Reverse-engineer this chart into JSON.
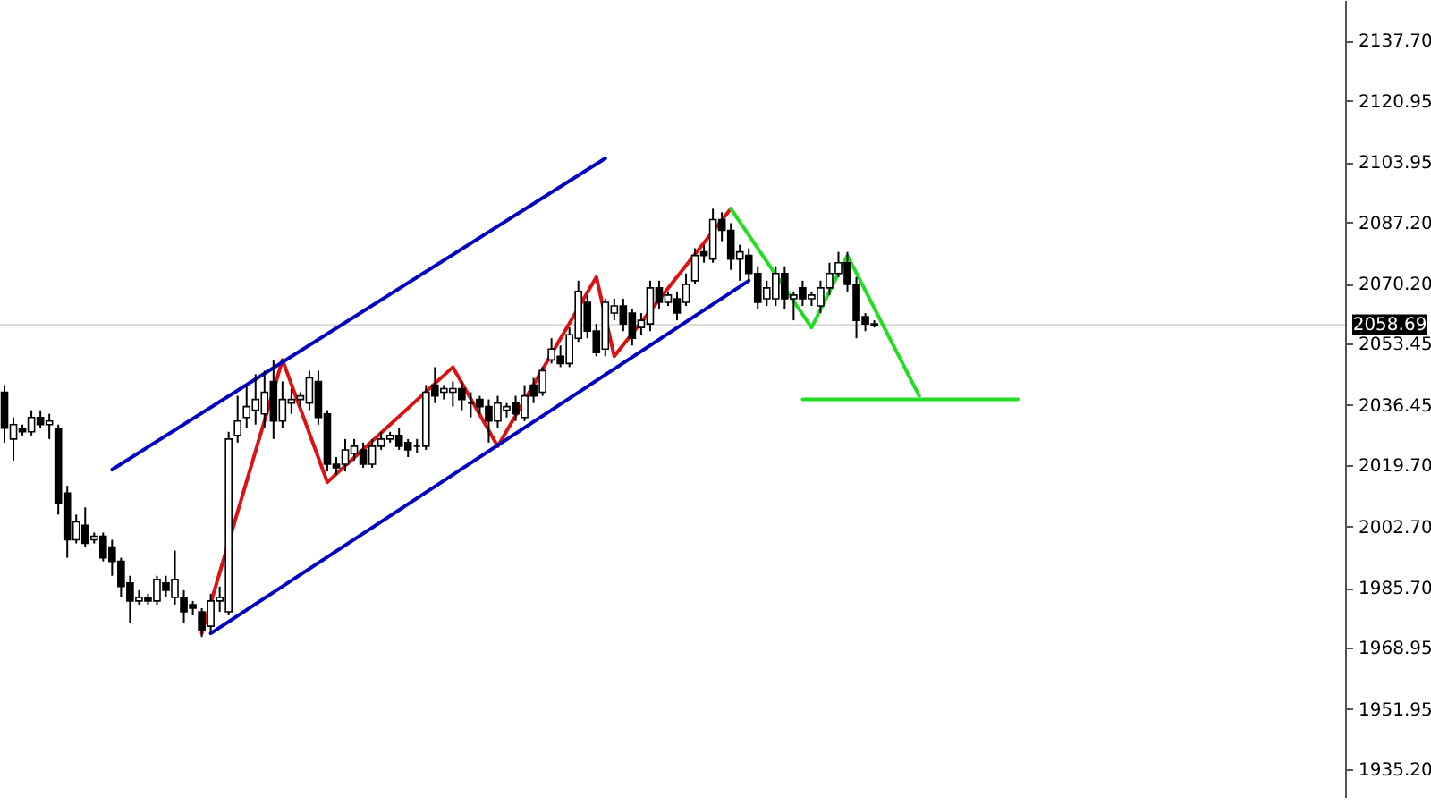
{
  "chart_data": {
    "type": "candlestick",
    "categories": [
      null,
      null,
      null,
      null,
      null,
      null,
      null,
      null,
      null,
      null,
      null,
      null,
      null,
      null,
      null,
      null,
      null,
      null,
      null,
      null,
      null,
      null,
      null,
      null,
      null,
      null,
      null,
      null,
      null,
      null,
      null,
      null,
      null,
      null,
      null,
      null,
      null,
      null,
      null,
      null,
      null,
      null,
      null,
      null,
      null,
      null,
      null,
      null,
      null,
      null,
      null,
      null,
      null,
      null,
      null,
      null,
      null,
      null,
      null,
      null,
      null,
      null,
      null,
      null,
      null,
      null,
      null,
      null,
      null,
      null,
      null,
      null,
      null,
      null,
      null,
      null,
      null,
      null,
      null,
      null,
      null,
      null,
      null,
      null,
      null,
      null,
      null,
      null,
      null,
      null,
      null,
      null,
      null,
      null,
      null,
      null,
      null,
      null,
      null,
      null,
      null,
      null,
      null,
      null,
      null,
      null,
      null,
      null,
      null,
      null,
      null,
      null,
      null,
      null,
      null,
      null,
      null,
      null,
      null,
      null,
      null,
      null,
      null,
      null,
      null,
      null,
      null,
      null,
      null,
      null,
      null,
      null,
      null,
      null,
      null,
      null,
      null,
      null,
      null,
      null,
      null,
      null,
      null,
      null,
      null,
      null,
      null,
      null,
      null,
      null
    ],
    "ohlc": [
      [
        2040,
        2042,
        2026,
        2030
      ],
      [
        2027,
        2033,
        2021,
        2031
      ],
      [
        2030,
        2031,
        2028,
        2029
      ],
      [
        2029,
        2035,
        2028,
        2033
      ],
      [
        2033,
        2035,
        2030,
        2031
      ],
      [
        2031,
        2034,
        2027,
        2032
      ],
      [
        2030,
        2031,
        2006,
        2009
      ],
      [
        2012,
        2014,
        1994,
        1999
      ],
      [
        1999,
        2006,
        1998,
        2004
      ],
      [
        2003,
        2008,
        1997,
        1998
      ],
      [
        1999,
        2001,
        1998,
        2000
      ],
      [
        2000,
        2001,
        1993,
        1994
      ],
      [
        1997,
        1999,
        1989,
        1993
      ],
      [
        1993,
        1994,
        1983,
        1986
      ],
      [
        1987,
        1989,
        1976,
        1982
      ],
      [
        1982,
        1985,
        1981,
        1983
      ],
      [
        1983,
        1984,
        1981,
        1982
      ],
      [
        1982,
        1989,
        1981,
        1988
      ],
      [
        1987,
        1989,
        1983,
        1985
      ],
      [
        1983,
        1996,
        1981,
        1988
      ],
      [
        1983,
        1985,
        1976,
        1979
      ],
      [
        1981,
        1982,
        1978,
        1980
      ],
      [
        1979,
        1980,
        1972,
        1974
      ],
      [
        1975,
        1984,
        1973,
        1982
      ],
      [
        1982,
        1986,
        1979,
        1983
      ],
      [
        1979,
        2029,
        1978,
        2027
      ],
      [
        2028,
        2039,
        2026,
        2032
      ],
      [
        2033,
        2042,
        2030,
        2036
      ],
      [
        2035,
        2045,
        2031,
        2038
      ],
      [
        2034,
        2046,
        2030,
        2040
      ],
      [
        2043,
        2049,
        2027,
        2032
      ],
      [
        2032,
        2043,
        2030,
        2038
      ],
      [
        2037,
        2041,
        2034,
        2038
      ],
      [
        2038,
        2040,
        2036,
        2039
      ],
      [
        2037,
        2046,
        2035,
        2044
      ],
      [
        2043,
        2046,
        2031,
        2033
      ],
      [
        2034,
        2035,
        2018,
        2020
      ],
      [
        2020,
        2022,
        2017,
        2019
      ],
      [
        2020,
        2027,
        2018,
        2024
      ],
      [
        2023,
        2027,
        2021,
        2025
      ],
      [
        2024,
        2026,
        2019,
        2020
      ],
      [
        2020,
        2027,
        2019,
        2025
      ],
      [
        2025,
        2029,
        2024,
        2027
      ],
      [
        2027,
        2029,
        2026,
        2028
      ],
      [
        2028,
        2030,
        2024,
        2025
      ],
      [
        2026,
        2027,
        2022,
        2024
      ],
      [
        2025,
        2027,
        2023,
        2025
      ],
      [
        2025,
        2042,
        2024,
        2040
      ],
      [
        2042,
        2047,
        2037,
        2039
      ],
      [
        2040,
        2042,
        2038,
        2041
      ],
      [
        2040,
        2043,
        2036,
        2041
      ],
      [
        2041,
        2043,
        2035,
        2038
      ],
      [
        2037,
        2040,
        2033,
        2037
      ],
      [
        2038,
        2039,
        2034,
        2036
      ],
      [
        2036,
        2038,
        2026,
        2032
      ],
      [
        2032,
        2039,
        2030,
        2037
      ],
      [
        2035,
        2037,
        2033,
        2036
      ],
      [
        2037,
        2039,
        2032,
        2034
      ],
      [
        2033,
        2042,
        2032,
        2039
      ],
      [
        2042,
        2044,
        2037,
        2039
      ],
      [
        2040,
        2047,
        2039,
        2046
      ],
      [
        2049,
        2055,
        2048,
        2052
      ],
      [
        2050,
        2053,
        2047,
        2048
      ],
      [
        2048,
        2058,
        2047,
        2056
      ],
      [
        2055,
        2071,
        2054,
        2068
      ],
      [
        2065,
        2067,
        2055,
        2057
      ],
      [
        2057,
        2059,
        2050,
        2051
      ],
      [
        2052,
        2066,
        2050,
        2065
      ],
      [
        2062,
        2066,
        2060,
        2064
      ],
      [
        2064,
        2066,
        2057,
        2059
      ],
      [
        2062,
        2063,
        2053,
        2055
      ],
      [
        2058,
        2062,
        2056,
        2060
      ],
      [
        2059,
        2071,
        2057,
        2069
      ],
      [
        2069,
        2071,
        2063,
        2065
      ],
      [
        2065,
        2068,
        2064,
        2067
      ],
      [
        2066,
        2068,
        2060,
        2062
      ],
      [
        2065,
        2073,
        2064,
        2070
      ],
      [
        2071,
        2080,
        2070,
        2078
      ],
      [
        2079,
        2081,
        2076,
        2078
      ],
      [
        2077,
        2091,
        2076,
        2088
      ],
      [
        2088,
        2090,
        2082,
        2085
      ],
      [
        2085,
        2087,
        2074,
        2077
      ],
      [
        2077,
        2081,
        2071,
        2079
      ],
      [
        2078,
        2080,
        2071,
        2073
      ],
      [
        2073,
        2075,
        2063,
        2065
      ],
      [
        2066,
        2071,
        2064,
        2069
      ],
      [
        2066,
        2075,
        2064,
        2073
      ],
      [
        2073,
        2075,
        2063,
        2066
      ],
      [
        2066,
        2068,
        2060,
        2067
      ],
      [
        2069,
        2071,
        2064,
        2066
      ],
      [
        2066,
        2068,
        2064,
        2067
      ],
      [
        2064,
        2071,
        2062,
        2069
      ],
      [
        2069,
        2076,
        2067,
        2073
      ],
      [
        2073,
        2079,
        2072,
        2076
      ],
      [
        2076,
        2079,
        2068,
        2070
      ],
      [
        2070,
        2072,
        2055,
        2060
      ],
      [
        2061,
        2062,
        2057,
        2059
      ],
      [
        2059,
        2060,
        2058,
        2058.69
      ],
      null,
      null,
      null,
      null,
      null,
      null,
      null,
      null,
      null,
      null,
      null,
      null,
      null,
      null,
      null,
      null,
      null,
      null,
      null,
      null,
      null,
      null,
      null,
      null,
      null,
      null,
      null,
      null,
      null,
      null,
      null,
      null,
      null,
      null,
      null,
      null,
      null,
      null,
      null,
      null,
      null,
      null,
      null,
      null,
      null,
      null,
      null,
      null,
      null,
      null,
      null,
      null
    ],
    "series": [
      {
        "type": "line",
        "color": "#dd1111",
        "values": [
          null,
          null,
          null,
          null,
          null,
          null,
          null,
          null,
          null,
          null,
          null,
          null,
          null,
          null,
          null,
          null,
          null,
          null,
          null,
          null,
          null,
          null,
          1973,
          null,
          null,
          null,
          null,
          null,
          null,
          null,
          null,
          2049,
          null,
          null,
          null,
          null,
          2015,
          null,
          null,
          null,
          null,
          null,
          null,
          null,
          null,
          null,
          null,
          null,
          null,
          null,
          2047,
          null,
          null,
          null,
          null,
          2025,
          null,
          null,
          null,
          null,
          null,
          null,
          null,
          null,
          null,
          null,
          2072,
          null,
          2050,
          null,
          null,
          null,
          null,
          null,
          null,
          null,
          null,
          null,
          null,
          null,
          null,
          2091,
          null,
          null,
          null,
          null,
          null,
          null,
          null,
          null,
          null,
          null,
          null,
          null,
          null,
          null,
          null,
          null,
          null,
          null,
          null,
          null,
          null,
          null,
          null,
          null,
          null,
          null,
          null,
          null,
          null,
          null,
          null,
          null,
          null,
          null,
          null,
          null,
          null,
          null,
          null,
          null,
          null,
          null,
          null,
          null,
          null,
          null,
          null,
          null,
          null,
          null,
          null,
          null,
          null,
          null,
          null,
          null,
          null,
          null,
          null,
          null,
          null,
          null,
          null,
          null,
          null,
          null,
          null,
          null
        ]
      },
      {
        "type": "line",
        "color": "#22dd22",
        "values": [
          null,
          null,
          null,
          null,
          null,
          null,
          null,
          null,
          null,
          null,
          null,
          null,
          null,
          null,
          null,
          null,
          null,
          null,
          null,
          null,
          null,
          null,
          null,
          null,
          null,
          null,
          null,
          null,
          null,
          null,
          null,
          null,
          null,
          null,
          null,
          null,
          null,
          null,
          null,
          null,
          null,
          null,
          null,
          null,
          null,
          null,
          null,
          null,
          null,
          null,
          null,
          null,
          null,
          null,
          null,
          null,
          null,
          null,
          null,
          null,
          null,
          null,
          null,
          null,
          null,
          null,
          null,
          null,
          null,
          null,
          null,
          null,
          null,
          null,
          null,
          null,
          null,
          null,
          null,
          null,
          null,
          2091,
          null,
          null,
          null,
          null,
          null,
          null,
          null,
          null,
          2058,
          null,
          null,
          null,
          2078,
          null,
          null,
          null,
          null,
          null,
          null,
          null,
          2039,
          null,
          null,
          null,
          null,
          null,
          null,
          null,
          null,
          null,
          null,
          null,
          null,
          null,
          null,
          null,
          null,
          null,
          null,
          null,
          null,
          null,
          null,
          null,
          null,
          null,
          null,
          null,
          null,
          null,
          null,
          null,
          null,
          null,
          null,
          null,
          null,
          null,
          null,
          null,
          null,
          null,
          null,
          null,
          null,
          null,
          null,
          null
        ]
      },
      {
        "type": "line",
        "color": "#22dd22",
        "values": [
          null,
          null,
          null,
          null,
          null,
          null,
          null,
          null,
          null,
          null,
          null,
          null,
          null,
          null,
          null,
          null,
          null,
          null,
          null,
          null,
          null,
          null,
          null,
          null,
          null,
          null,
          null,
          null,
          null,
          null,
          null,
          null,
          null,
          null,
          null,
          null,
          null,
          null,
          null,
          null,
          null,
          null,
          null,
          null,
          null,
          null,
          null,
          null,
          null,
          null,
          null,
          null,
          null,
          null,
          null,
          null,
          null,
          null,
          null,
          null,
          null,
          null,
          null,
          null,
          null,
          null,
          null,
          null,
          null,
          null,
          null,
          null,
          null,
          null,
          null,
          null,
          null,
          null,
          null,
          null,
          null,
          null,
          null,
          null,
          null,
          null,
          null,
          null,
          null,
          2038,
          null,
          null,
          null,
          null,
          null,
          null,
          null,
          null,
          null,
          null,
          null,
          null,
          null,
          null,
          null,
          null,
          null,
          null,
          null,
          null,
          null,
          null,
          null,
          2038,
          null,
          null,
          null,
          null,
          null,
          null,
          null,
          null,
          null,
          null,
          null,
          null,
          null,
          null,
          null,
          null,
          null,
          null,
          null,
          null,
          null,
          null,
          null,
          null,
          null,
          null,
          null,
          null,
          null,
          null,
          null,
          null,
          null,
          null,
          null,
          null
        ]
      },
      {
        "type": "line",
        "color": "#0000c0",
        "values": [
          null,
          null,
          null,
          null,
          null,
          null,
          null,
          null,
          null,
          null,
          null,
          null,
          2018.5,
          null,
          null,
          null,
          null,
          null,
          null,
          null,
          null,
          null,
          null,
          null,
          null,
          null,
          null,
          null,
          null,
          null,
          null,
          null,
          null,
          null,
          null,
          null,
          null,
          null,
          null,
          null,
          null,
          null,
          null,
          null,
          null,
          null,
          null,
          null,
          null,
          null,
          null,
          null,
          null,
          null,
          null,
          null,
          null,
          null,
          null,
          null,
          null,
          null,
          null,
          null,
          null,
          null,
          null,
          2105,
          null,
          null,
          null,
          null,
          null,
          null,
          null,
          null,
          null,
          null,
          null,
          null,
          null,
          null,
          null,
          null,
          null,
          null,
          null,
          null,
          null,
          null,
          null,
          null,
          null,
          null,
          null,
          null,
          null,
          null,
          null,
          null,
          null,
          null,
          null,
          null,
          null,
          null,
          null,
          null,
          null,
          null,
          null,
          null,
          null,
          null,
          null,
          null,
          null,
          null,
          null,
          null,
          null,
          null,
          null,
          null,
          null,
          null,
          null,
          null,
          null,
          null,
          null,
          null,
          null,
          null,
          null,
          null,
          null,
          null,
          null,
          null,
          null,
          null,
          null,
          null,
          null,
          null,
          null,
          null,
          null,
          null
        ]
      },
      {
        "type": "line",
        "color": "#0000c0",
        "values": [
          null,
          null,
          null,
          null,
          null,
          null,
          null,
          null,
          null,
          null,
          null,
          null,
          null,
          null,
          null,
          null,
          null,
          null,
          null,
          null,
          null,
          null,
          null,
          1973,
          null,
          null,
          null,
          null,
          null,
          null,
          null,
          null,
          null,
          null,
          null,
          null,
          null,
          null,
          null,
          null,
          null,
          null,
          null,
          null,
          null,
          null,
          null,
          null,
          null,
          null,
          null,
          null,
          null,
          null,
          null,
          null,
          null,
          null,
          null,
          null,
          null,
          null,
          null,
          null,
          null,
          null,
          null,
          null,
          null,
          null,
          null,
          null,
          null,
          null,
          null,
          null,
          null,
          null,
          null,
          null,
          null,
          null,
          null,
          2071,
          null,
          null,
          null,
          null,
          null,
          null,
          null,
          null,
          null,
          null,
          null,
          null,
          null,
          null,
          null,
          null,
          null,
          null,
          null,
          null,
          null,
          null,
          null,
          null,
          null,
          null,
          null,
          null,
          null,
          null,
          null,
          null,
          null,
          null,
          null,
          null,
          null,
          null,
          null,
          null,
          null,
          null,
          null,
          null,
          null,
          null,
          null,
          null,
          null,
          null,
          null,
          null,
          null,
          null,
          null,
          null,
          null,
          null,
          null,
          null,
          null,
          null,
          null,
          null,
          null,
          null
        ]
      }
    ],
    "ylim": [
      1927.3,
      2149.0
    ],
    "yticks": [
      {
        "value": 1935.2,
        "label": "1935.20"
      },
      {
        "value": 1951.95,
        "label": "1951.95"
      },
      {
        "value": 1968.95,
        "label": "1968.95"
      },
      {
        "value": 1985.7,
        "label": "1985.70"
      },
      {
        "value": 2002.7,
        "label": "2002.70"
      },
      {
        "value": 2019.7,
        "label": "2019.70"
      },
      {
        "value": 2036.45,
        "label": "2036.45"
      },
      {
        "value": 2053.45,
        "label": "2053.45"
      },
      {
        "value": 2070.2,
        "label": "2070.20"
      },
      {
        "value": 2087.2,
        "label": "2087.20"
      },
      {
        "value": 2103.95,
        "label": "2103.95"
      },
      {
        "value": 2120.95,
        "label": "2120.95"
      },
      {
        "value": 2137.7,
        "label": "2137.70"
      }
    ],
    "tick_labels": "y",
    "ref_lines": [
      {
        "axis": "y",
        "value": 2058.69,
        "label": "2058.69",
        "color": "#d8d8d8"
      }
    ]
  }
}
